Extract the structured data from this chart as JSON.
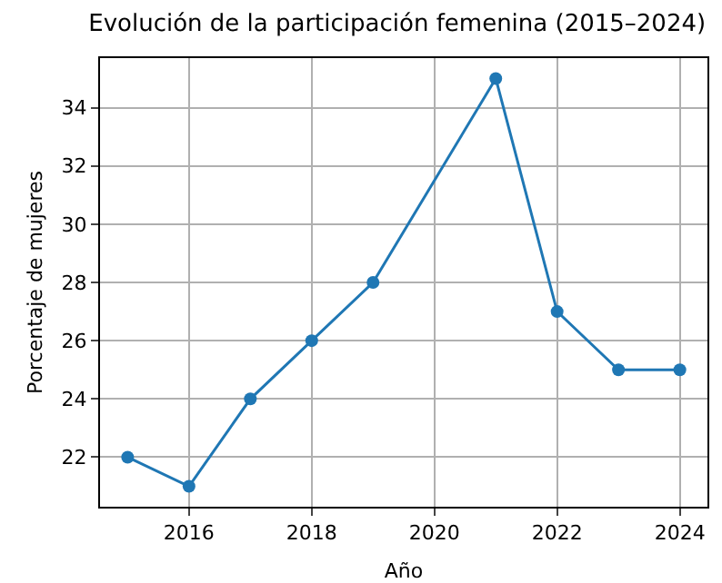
{
  "chart_data": {
    "type": "line",
    "title": "Evolución de la participación femenina (2015–2024)",
    "xlabel": "Año",
    "ylabel": "Porcentaje de mujeres",
    "x": [
      2015,
      2016,
      2017,
      2018,
      2019,
      2021,
      2022,
      2023,
      2024
    ],
    "series": [
      {
        "color": "#1f77b4",
        "values": [
          22,
          21,
          24,
          26,
          28,
          35,
          27,
          25,
          25
        ]
      }
    ],
    "xlim": [
      2014.55,
      2024.45
    ],
    "xticks": [
      2016,
      2018,
      2020,
      2022,
      2024
    ],
    "ylim": [
      20.3,
      35.7
    ],
    "yticks": [
      22,
      24,
      26,
      28,
      30,
      32,
      34
    ],
    "grid": true,
    "marker": "circle",
    "line_style": "solid"
  }
}
